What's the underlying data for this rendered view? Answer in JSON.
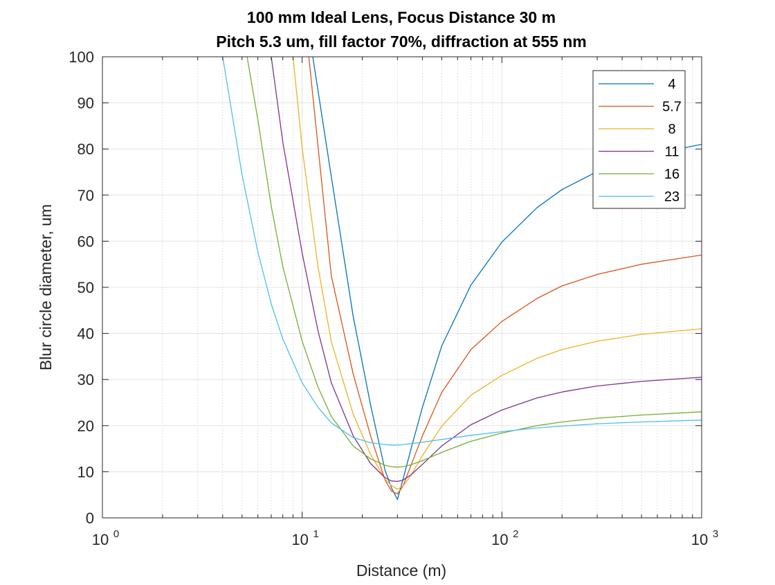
{
  "figure": {
    "title_line1": "100 mm Ideal Lens, Focus Distance 30 m",
    "title_line2": "Pitch 5.3 um, fill factor 70%, diffraction at 555 nm"
  },
  "chart_data": {
    "type": "line",
    "title": "100 mm Ideal Lens, Focus Distance 30 m\nPitch 5.3 um, fill factor 70%, diffraction at 555 nm",
    "xlabel": "Distance (m)",
    "ylabel": "Blur circle diameter, um",
    "xscale": "log",
    "xlim": [
      1,
      1000
    ],
    "ylim": [
      0,
      100
    ],
    "grid": true,
    "minor_grid": true,
    "legend_position": "top-right",
    "x_ticks": [
      {
        "value": 1,
        "base": "10",
        "exp": "0"
      },
      {
        "value": 10,
        "base": "10",
        "exp": "1"
      },
      {
        "value": 100,
        "base": "10",
        "exp": "2"
      },
      {
        "value": 1000,
        "base": "10",
        "exp": "3"
      }
    ],
    "y_ticks": [
      {
        "value": 0,
        "label": "0"
      },
      {
        "value": 10,
        "label": "10"
      },
      {
        "value": 20,
        "label": "20"
      },
      {
        "value": 30,
        "label": "30"
      },
      {
        "value": 40,
        "label": "40"
      },
      {
        "value": 50,
        "label": "50"
      },
      {
        "value": 60,
        "label": "60"
      },
      {
        "value": 70,
        "label": "70"
      },
      {
        "value": 80,
        "label": "80"
      },
      {
        "value": 90,
        "label": "90"
      },
      {
        "value": 100,
        "label": "100"
      }
    ],
    "series": [
      {
        "name": "4",
        "color": "#0072BD",
        "x": [
          11.3,
          14,
          18,
          22,
          26,
          28,
          30,
          32,
          35,
          40,
          50,
          70,
          100,
          150,
          200,
          300,
          500,
          1000
        ],
        "y": [
          100,
          74,
          43.7,
          24.5,
          10.3,
          6.5,
          4,
          8.4,
          14.8,
          24,
          37.3,
          50.5,
          59.8,
          67.3,
          71.2,
          75.1,
          78.4,
          81
        ]
      },
      {
        "name": "5.7",
        "color": "#D95319",
        "x": [
          10.8,
          14,
          18,
          22,
          26,
          28,
          30,
          32,
          35,
          40,
          50,
          70,
          100,
          150,
          200,
          300,
          500,
          1000
        ],
        "y": [
          100,
          52.5,
          31.2,
          17.8,
          8.2,
          5.8,
          5.2,
          6.9,
          11.3,
          17.8,
          27.2,
          36.5,
          42.6,
          47.6,
          50.3,
          52.8,
          55,
          57
        ]
      },
      {
        "name": "8",
        "color": "#EDB120",
        "x": [
          9,
          10,
          12,
          14,
          18,
          22,
          26,
          28,
          30,
          32,
          35,
          40,
          50,
          70,
          100,
          150,
          200,
          300,
          500,
          1000
        ],
        "y": [
          100,
          80.2,
          54.5,
          38.2,
          22.5,
          13.8,
          8.4,
          7,
          6.2,
          6.9,
          9.2,
          13.5,
          19.9,
          26.6,
          30.9,
          34.6,
          36.5,
          38.3,
          39.8,
          41
        ]
      },
      {
        "name": "11",
        "color": "#7E2F8E",
        "x": [
          7,
          8,
          10,
          12,
          14,
          18,
          22,
          26,
          28,
          30,
          32,
          35,
          40,
          50,
          70,
          100,
          150,
          200,
          300,
          500,
          1000
        ],
        "y": [
          100,
          81.5,
          57.4,
          40.6,
          29.3,
          17.8,
          11.8,
          8.7,
          8,
          7.9,
          8.2,
          9.3,
          11.6,
          15.6,
          20.2,
          23.4,
          26,
          27.3,
          28.6,
          29.6,
          30.5
        ]
      },
      {
        "name": "16",
        "color": "#77AC30",
        "x": [
          5.3,
          6,
          7,
          8,
          10,
          12,
          14,
          18,
          22,
          26,
          28,
          30,
          32,
          35,
          40,
          50,
          70,
          100,
          150,
          200,
          300,
          500,
          1000
        ],
        "y": [
          100,
          86.4,
          67.6,
          54.5,
          38.3,
          28.4,
          22,
          15.6,
          12.8,
          11.4,
          11.1,
          11,
          11.1,
          11.5,
          12.4,
          14.2,
          16.6,
          18.4,
          20,
          20.8,
          21.6,
          22.3,
          23
        ]
      },
      {
        "name": "23",
        "color": "#4DBEEE",
        "x": [
          4,
          5,
          6,
          7,
          8,
          10,
          12,
          14,
          18,
          22,
          26,
          28,
          30,
          32,
          35,
          40,
          50,
          70,
          100,
          150,
          200,
          300,
          500,
          1000
        ],
        "y": [
          100,
          74.4,
          57.7,
          46.4,
          38.8,
          29.3,
          24,
          20.6,
          17.4,
          16.3,
          15.9,
          15.8,
          15.8,
          15.9,
          16.1,
          16.4,
          17,
          17.9,
          18.7,
          19.5,
          19.9,
          20.4,
          20.8,
          21.2
        ]
      }
    ]
  }
}
